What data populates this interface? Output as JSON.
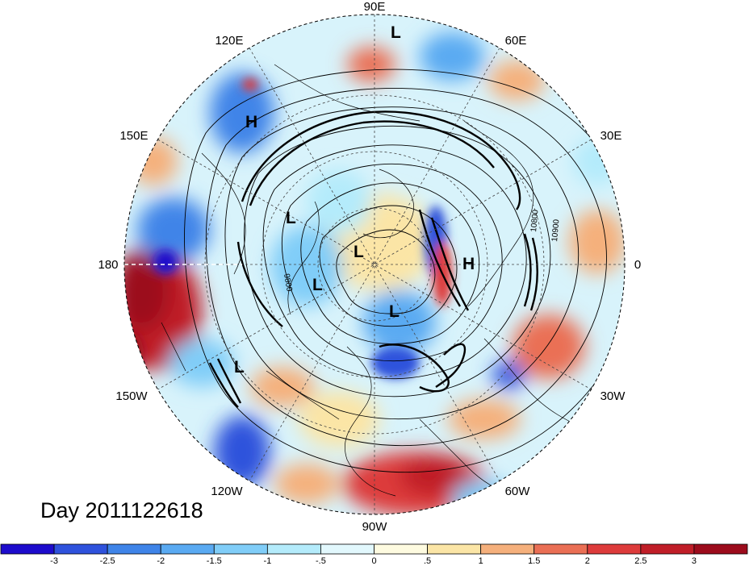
{
  "title": "Day 2011122618",
  "longitude_labels": [
    "90E",
    "60E",
    "30E",
    "0",
    "30W",
    "60W",
    "90W",
    "120W",
    "150W",
    "180",
    "150E",
    "120E"
  ],
  "pressure_centers": [
    {
      "label": "L",
      "lon": "90E region"
    },
    {
      "label": "H",
      "lon": "135E region"
    },
    {
      "label": "L",
      "lon": "170E region"
    },
    {
      "label": "L",
      "lon": "pole region"
    },
    {
      "label": "L",
      "lon": "west Canada region"
    },
    {
      "label": "L",
      "lon": "Greenland region"
    },
    {
      "label": "H",
      "lon": "Europe region"
    },
    {
      "label": "L",
      "lon": "Pacific region"
    }
  ],
  "contour_labels": [
    "9800",
    "10900",
    "10800"
  ],
  "colorbar": {
    "tick_labels": [
      "-3",
      "-2.5",
      "-2",
      "-1.5",
      "-1",
      "-.5",
      "0",
      ".5",
      "1",
      "1.5",
      "2",
      "2.5",
      "3"
    ],
    "colors": [
      "#1d0ccc",
      "#2f52dc",
      "#3f84e8",
      "#5aaaf2",
      "#80cdf8",
      "#b4ebfb",
      "#e2f8fd",
      "#fefbe0",
      "#fbe5a6",
      "#f5b07c",
      "#ea6f55",
      "#dd3b3b",
      "#c01e28",
      "#9c0c1c"
    ]
  }
}
